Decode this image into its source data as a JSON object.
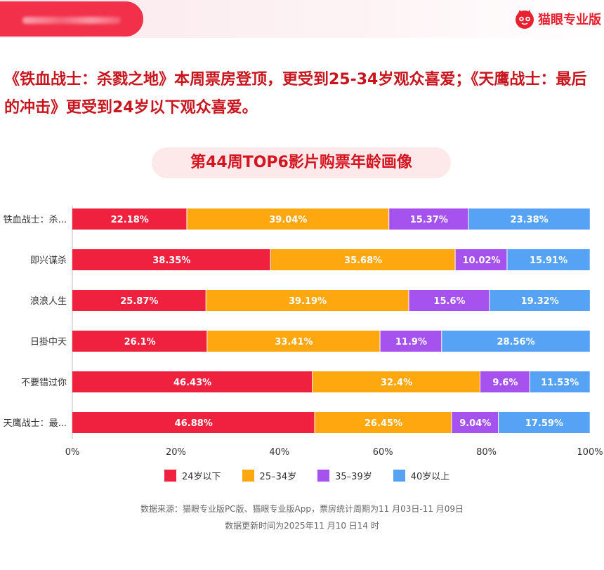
{
  "header": {
    "brand_name": "猫眼专业版"
  },
  "headline": "《铁血战士：杀戮之地》本周票房登顶，更受到25-34岁观众喜爱；《天鹰战士：最后的冲击》更受到24岁以下观众喜爱。",
  "chart_data": {
    "type": "bar",
    "orientation": "horizontal",
    "stacked": true,
    "title": "第44周TOP6影片购票年龄画像",
    "categories": [
      "铁血战士：杀...",
      "即兴谋杀",
      "浪浪人生",
      "日掛中天",
      "不要错过你",
      "天鹰战士：最..."
    ],
    "series": [
      {
        "name": "24岁以下",
        "color": "#f0203f",
        "values": [
          22.18,
          38.35,
          25.87,
          26.1,
          46.43,
          46.88
        ]
      },
      {
        "name": "25–34岁",
        "color": "#ffa70f",
        "values": [
          39.04,
          35.68,
          39.19,
          33.41,
          32.4,
          26.45
        ]
      },
      {
        "name": "35–39岁",
        "color": "#a552ee",
        "values": [
          15.37,
          10.02,
          15.6,
          11.9,
          9.6,
          9.04
        ]
      },
      {
        "name": "40岁以上",
        "color": "#56a3f5",
        "values": [
          23.38,
          15.91,
          19.32,
          28.56,
          11.53,
          17.59
        ]
      }
    ],
    "xlim": [
      0,
      100
    ],
    "xticks": [
      "0%",
      "20%",
      "40%",
      "60%",
      "80%",
      "100%"
    ],
    "xlabel": "",
    "ylabel": "",
    "legend": "bottom"
  },
  "footer": {
    "source": "数据来源：猫眼专业版PC版、猫眼专业版App，票房统计周期为11 月03日-11 月09日",
    "updated": "数据更新时间为2025年11 月10 日14 时"
  }
}
